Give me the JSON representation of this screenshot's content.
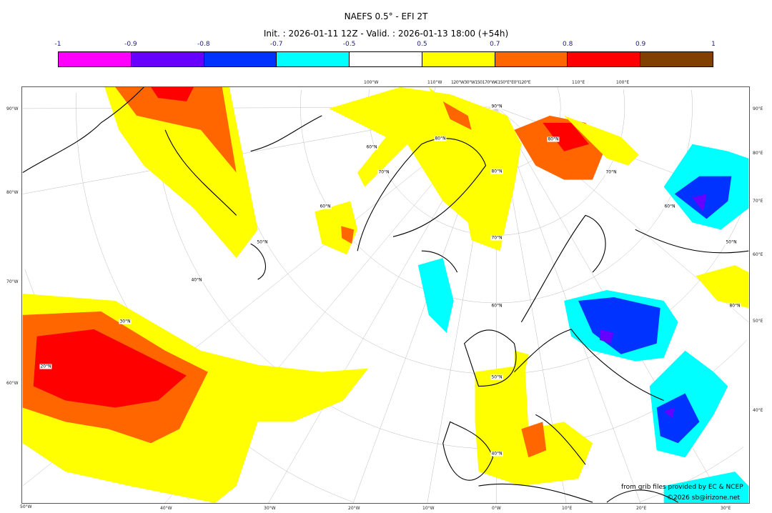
{
  "title": "NAEFS 0.5° - EFI 2T",
  "subtitle": "Init. : 2026-01-11 12Z - Valid. : 2026-01-13 18:00 (+54h)",
  "colorbar": {
    "ticks": [
      "-1",
      "-0.9",
      "-0.8",
      "-0.7",
      "-0.5",
      "0.5",
      "0.7",
      "0.8",
      "0.9",
      "1"
    ],
    "colors": [
      "#ff00ff",
      "#6600ff",
      "#0033ff",
      "#00ffff",
      "#ffffff",
      "#ffff00",
      "#ff6600",
      "#ff0000",
      "#804000"
    ]
  },
  "axes": {
    "left": [
      "90°W",
      "80°W",
      "70°W",
      "60°W",
      "50°W"
    ],
    "bottom": [
      "40°W",
      "30°W",
      "20°W",
      "10°W",
      "0°W",
      "10°E",
      "20°E",
      "30°E"
    ],
    "right": [
      "90°E",
      "80°E",
      "70°E",
      "60°E",
      "50°E",
      "40°E"
    ],
    "top": [
      "100°W",
      "110°W",
      "120°W30°W150170°W€150°E°E0°I120°E",
      "110°E",
      "100°E"
    ],
    "lat_labels": [
      "90°N",
      "80°N",
      "70°N",
      "60°N",
      "50°N",
      "40°N",
      "30°N",
      "20°N",
      "80°N",
      "70°N",
      "60°N",
      "50°N",
      "80°N",
      "70°N",
      "60°N",
      "50°N",
      "40°N",
      "80°N",
      "60°N"
    ]
  },
  "credits": {
    "source": "from grib files provided by EC & NCEP",
    "copyright": "©2026 sb@irizone.net"
  }
}
